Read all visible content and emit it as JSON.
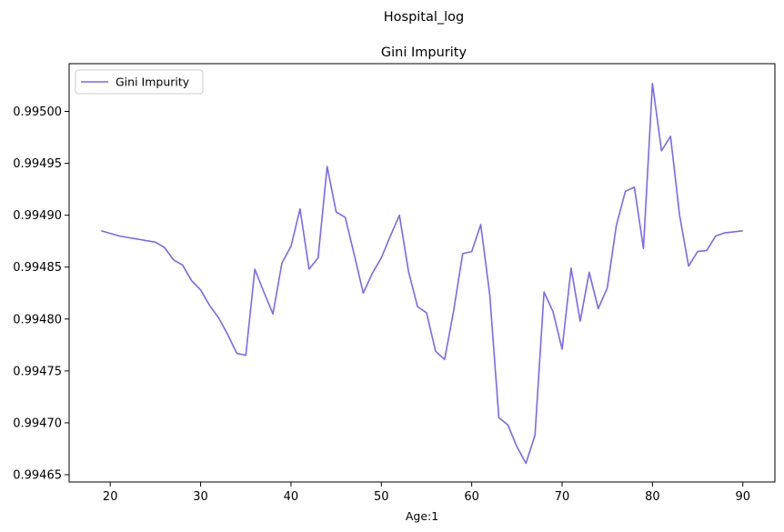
{
  "chart_data": {
    "type": "line",
    "suptitle": "Hospital_log",
    "title": "Gini Impurity",
    "xlabel": "Age:1",
    "ylabel": "",
    "xlim": [
      15.45,
      93.55
    ],
    "ylim": [
      0.994643,
      0.995046
    ],
    "xticks": [
      20,
      30,
      40,
      50,
      60,
      70,
      80,
      90
    ],
    "yticks": [
      0.99465,
      0.9947,
      0.99475,
      0.9948,
      0.99485,
      0.9949,
      0.99495,
      0.995
    ],
    "ytick_labels": [
      "0.99465",
      "0.99470",
      "0.99475",
      "0.99480",
      "0.99485",
      "0.99490",
      "0.99495",
      "0.99500"
    ],
    "grid": false,
    "legend_position": "top-left",
    "line_color": "#7b68ee",
    "series": [
      {
        "name": "Gini Impurity",
        "x": [
          19,
          21,
          25,
          26,
          27,
          28,
          29,
          30,
          31,
          32,
          33,
          34,
          35,
          36,
          37,
          38,
          39,
          40,
          41,
          42,
          43,
          44,
          45,
          46,
          47,
          48,
          49,
          50,
          51,
          52,
          53,
          54,
          55,
          56,
          57,
          58,
          59,
          60,
          61,
          62,
          63,
          64,
          65,
          66,
          67,
          68,
          69,
          70,
          71,
          72,
          73,
          74,
          75,
          76,
          77,
          78,
          79,
          80,
          81,
          82,
          83,
          84,
          85,
          86,
          87,
          88,
          89,
          90
        ],
        "y": [
          0.994885,
          0.99488,
          0.994874,
          0.994869,
          0.994857,
          0.994852,
          0.994837,
          0.994828,
          0.994813,
          0.994801,
          0.994785,
          0.994767,
          0.994765,
          0.994848,
          0.994826,
          0.994805,
          0.994854,
          0.99487,
          0.994906,
          0.994848,
          0.994859,
          0.994947,
          0.994903,
          0.994898,
          0.994862,
          0.994825,
          0.994844,
          0.994859,
          0.99488,
          0.9949,
          0.994846,
          0.994812,
          0.994806,
          0.994769,
          0.994761,
          0.994808,
          0.994863,
          0.994865,
          0.994891,
          0.994823,
          0.994705,
          0.994698,
          0.994677,
          0.994661,
          0.994688,
          0.994826,
          0.994807,
          0.994771,
          0.994849,
          0.994798,
          0.994845,
          0.99481,
          0.99483,
          0.99489,
          0.994923,
          0.994927,
          0.994868,
          0.995027,
          0.994962,
          0.994976,
          0.9949,
          0.994851,
          0.994865,
          0.994866,
          0.99488,
          0.994883,
          0.994884,
          0.994885
        ]
      }
    ]
  }
}
